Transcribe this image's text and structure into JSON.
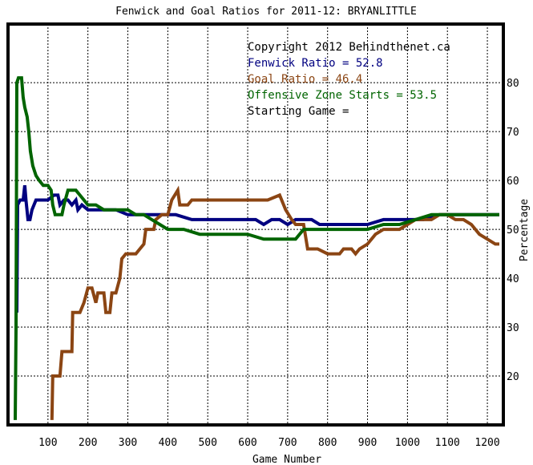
{
  "chart_data": {
    "type": "line",
    "title": "Fenwick and Goal Ratios for 2011-12: BRYANLITTLE",
    "xlabel": "Game Number",
    "ylabel": "Percentage",
    "xlim": [
      0,
      1240
    ],
    "ylim": [
      10,
      92
    ],
    "xticks": [
      100,
      200,
      300,
      400,
      500,
      600,
      700,
      800,
      900,
      1000,
      1100,
      1200
    ],
    "yticks": [
      20,
      30,
      40,
      50,
      60,
      70,
      80
    ],
    "grid": true,
    "annotations": [
      {
        "text": "Copyright 2012 Behindthenet.ca",
        "color": "#000000"
      },
      {
        "text": "Fenwick Ratio = 52.8",
        "color": "#000080"
      },
      {
        "text": "Goal Ratio = 46.4",
        "color": "#8b4513"
      },
      {
        "text": "Offensive Zone Starts = 53.5",
        "color": "#006400"
      },
      {
        "text": "Starting Game =",
        "color": "#000000"
      }
    ],
    "series": [
      {
        "name": "Fenwick Ratio",
        "color": "#000080",
        "points": [
          [
            22,
            33
          ],
          [
            24,
            55
          ],
          [
            30,
            56
          ],
          [
            38,
            56
          ],
          [
            42,
            59
          ],
          [
            45,
            56
          ],
          [
            50,
            52
          ],
          [
            55,
            52
          ],
          [
            60,
            54
          ],
          [
            70,
            56
          ],
          [
            85,
            56
          ],
          [
            100,
            56
          ],
          [
            115,
            57
          ],
          [
            125,
            57
          ],
          [
            130,
            55
          ],
          [
            140,
            56
          ],
          [
            150,
            56
          ],
          [
            160,
            55
          ],
          [
            170,
            56
          ],
          [
            175,
            54
          ],
          [
            185,
            55
          ],
          [
            200,
            54
          ],
          [
            220,
            54
          ],
          [
            240,
            54
          ],
          [
            270,
            54
          ],
          [
            300,
            53
          ],
          [
            340,
            53
          ],
          [
            380,
            53
          ],
          [
            420,
            53
          ],
          [
            460,
            52
          ],
          [
            500,
            52
          ],
          [
            540,
            52
          ],
          [
            580,
            52
          ],
          [
            620,
            52
          ],
          [
            640,
            51
          ],
          [
            660,
            52
          ],
          [
            680,
            52
          ],
          [
            700,
            51
          ],
          [
            720,
            52
          ],
          [
            740,
            52
          ],
          [
            760,
            52
          ],
          [
            780,
            51
          ],
          [
            800,
            51
          ],
          [
            830,
            51
          ],
          [
            860,
            51
          ],
          [
            900,
            51
          ],
          [
            940,
            52
          ],
          [
            980,
            52
          ],
          [
            1000,
            52
          ],
          [
            1040,
            52
          ],
          [
            1080,
            53
          ],
          [
            1120,
            53
          ],
          [
            1160,
            53
          ],
          [
            1200,
            53
          ],
          [
            1230,
            53
          ]
        ]
      },
      {
        "name": "Goal Ratio",
        "color": "#8b4513",
        "points": [
          [
            110,
            11
          ],
          [
            112,
            20
          ],
          [
            130,
            20
          ],
          [
            135,
            25
          ],
          [
            150,
            25
          ],
          [
            160,
            25
          ],
          [
            162,
            33
          ],
          [
            180,
            33
          ],
          [
            190,
            35
          ],
          [
            200,
            38
          ],
          [
            210,
            38
          ],
          [
            220,
            35
          ],
          [
            225,
            37
          ],
          [
            240,
            37
          ],
          [
            245,
            33
          ],
          [
            255,
            33
          ],
          [
            260,
            37
          ],
          [
            270,
            37
          ],
          [
            280,
            40
          ],
          [
            285,
            44
          ],
          [
            295,
            45
          ],
          [
            320,
            45
          ],
          [
            330,
            46
          ],
          [
            340,
            47
          ],
          [
            345,
            50
          ],
          [
            355,
            50
          ],
          [
            365,
            50
          ],
          [
            370,
            52
          ],
          [
            385,
            53
          ],
          [
            400,
            53
          ],
          [
            410,
            56
          ],
          [
            425,
            58
          ],
          [
            430,
            55
          ],
          [
            450,
            55
          ],
          [
            460,
            56
          ],
          [
            500,
            56
          ],
          [
            560,
            56
          ],
          [
            600,
            56
          ],
          [
            650,
            56
          ],
          [
            680,
            57
          ],
          [
            695,
            54
          ],
          [
            710,
            52
          ],
          [
            720,
            51
          ],
          [
            740,
            51
          ],
          [
            750,
            46
          ],
          [
            775,
            46
          ],
          [
            800,
            45
          ],
          [
            830,
            45
          ],
          [
            840,
            46
          ],
          [
            860,
            46
          ],
          [
            870,
            45
          ],
          [
            880,
            46
          ],
          [
            900,
            47
          ],
          [
            920,
            49
          ],
          [
            940,
            50
          ],
          [
            980,
            50
          ],
          [
            1000,
            51
          ],
          [
            1020,
            52
          ],
          [
            1060,
            52
          ],
          [
            1080,
            53
          ],
          [
            1100,
            53
          ],
          [
            1120,
            52
          ],
          [
            1140,
            52
          ],
          [
            1160,
            51
          ],
          [
            1180,
            49
          ],
          [
            1200,
            48
          ],
          [
            1220,
            47
          ],
          [
            1230,
            47
          ]
        ]
      },
      {
        "name": "Offensive Zone Starts",
        "color": "#006400",
        "points": [
          [
            18,
            11
          ],
          [
            20,
            30
          ],
          [
            22,
            80
          ],
          [
            26,
            81
          ],
          [
            30,
            81
          ],
          [
            34,
            81
          ],
          [
            38,
            77
          ],
          [
            42,
            75
          ],
          [
            48,
            73
          ],
          [
            52,
            70
          ],
          [
            56,
            66
          ],
          [
            62,
            63
          ],
          [
            70,
            61
          ],
          [
            78,
            60
          ],
          [
            88,
            59
          ],
          [
            100,
            59
          ],
          [
            108,
            58
          ],
          [
            112,
            55
          ],
          [
            118,
            53
          ],
          [
            125,
            53
          ],
          [
            135,
            53
          ],
          [
            140,
            55
          ],
          [
            150,
            58
          ],
          [
            160,
            58
          ],
          [
            170,
            58
          ],
          [
            180,
            57
          ],
          [
            190,
            56
          ],
          [
            200,
            55
          ],
          [
            220,
            55
          ],
          [
            240,
            54
          ],
          [
            260,
            54
          ],
          [
            280,
            54
          ],
          [
            300,
            54
          ],
          [
            320,
            53
          ],
          [
            340,
            53
          ],
          [
            360,
            52
          ],
          [
            380,
            51
          ],
          [
            400,
            50
          ],
          [
            440,
            50
          ],
          [
            480,
            49
          ],
          [
            520,
            49
          ],
          [
            560,
            49
          ],
          [
            600,
            49
          ],
          [
            640,
            48
          ],
          [
            680,
            48
          ],
          [
            700,
            48
          ],
          [
            720,
            48
          ],
          [
            740,
            50
          ],
          [
            760,
            50
          ],
          [
            780,
            50
          ],
          [
            820,
            50
          ],
          [
            860,
            50
          ],
          [
            900,
            50
          ],
          [
            940,
            51
          ],
          [
            980,
            51
          ],
          [
            1020,
            52
          ],
          [
            1060,
            53
          ],
          [
            1100,
            53
          ],
          [
            1140,
            53
          ],
          [
            1180,
            53
          ],
          [
            1230,
            53
          ]
        ]
      }
    ]
  }
}
